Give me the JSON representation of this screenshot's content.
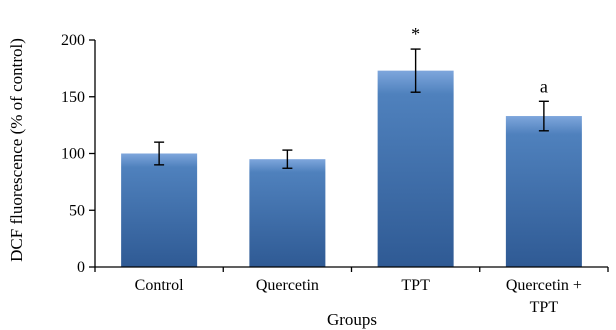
{
  "chart_data": {
    "type": "bar",
    "categories": [
      "Control",
      "Quercetin",
      "TPT",
      "Quercetin + TPT"
    ],
    "category_label_lines": [
      [
        "Control"
      ],
      [
        "Quercetin"
      ],
      [
        "TPT"
      ],
      [
        "Quercetin +",
        "TPT"
      ]
    ],
    "values": [
      100,
      95,
      173,
      133
    ],
    "error": [
      10,
      8,
      19,
      13
    ],
    "annotations": [
      "",
      "",
      "*",
      "a"
    ],
    "title": "",
    "xlabel": "Groups",
    "ylabel": "DCF fluorescence (% of control)",
    "ylim": [
      0,
      200
    ],
    "yticks": [
      0,
      50,
      100,
      150,
      200
    ],
    "grid": false,
    "legend": "none",
    "colors": {
      "bar_light": "#7ea6dc",
      "bar_mid": "#4f81bd",
      "bar_dark": "#2f5a94",
      "axis": "#000000"
    }
  }
}
